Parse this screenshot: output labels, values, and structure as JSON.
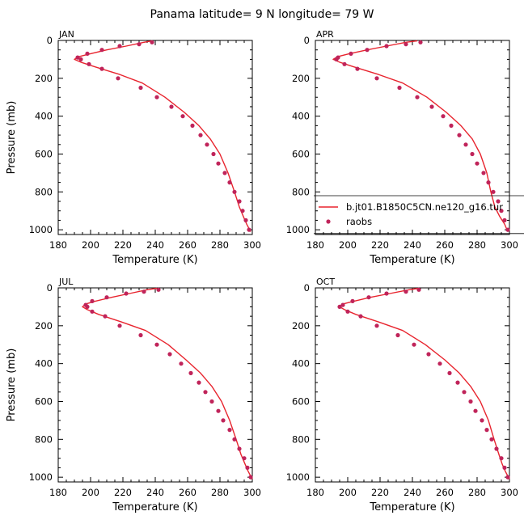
{
  "title": "Panama  latitude= 9 N longitude= 79 W",
  "colors": {
    "model_line": "#e8242e",
    "obs_marker": "#c0245a",
    "axis": "#000000"
  },
  "legend": {
    "panel": "APR",
    "line_label": "b.jt01.B1850C5CN.ne120_g16.tur",
    "marker_label": "raobs"
  },
  "chart_data": [
    {
      "type": "line",
      "panel": "JAN",
      "xlabel": "Temperature (K)",
      "ylabel": "Pressure (mb)",
      "xlim": [
        180,
        300
      ],
      "ylim": [
        1025,
        0
      ],
      "xticks": [
        180,
        200,
        220,
        240,
        260,
        280,
        300
      ],
      "yticks": [
        0,
        200,
        400,
        600,
        800,
        1000
      ],
      "series": [
        {
          "name": "b.jt01.B1850C5CN.ne120_g16.tur",
          "kind": "line",
          "x": [
            238,
            233,
            222,
            210,
            200,
            193,
            190,
            194,
            203,
            218,
            232,
            246,
            258,
            267,
            274,
            280,
            285,
            289,
            292,
            294.5,
            296.5,
            299
          ],
          "y": [
            2,
            10,
            30,
            50,
            70,
            85,
            100,
            115,
            140,
            180,
            225,
            300,
            380,
            450,
            520,
            600,
            700,
            800,
            880,
            930,
            970,
            1010
          ]
        },
        {
          "name": "raobs",
          "kind": "scatter",
          "x": [
            238,
            230,
            218,
            207,
            198,
            192,
            194,
            199,
            207,
            217,
            231,
            241,
            250,
            257,
            263,
            268,
            272,
            276,
            279,
            283,
            286,
            289,
            292,
            294,
            296,
            298
          ],
          "y": [
            10,
            20,
            30,
            50,
            70,
            90,
            100,
            125,
            150,
            200,
            250,
            300,
            350,
            400,
            450,
            500,
            550,
            600,
            650,
            700,
            750,
            800,
            850,
            900,
            950,
            1000
          ]
        }
      ]
    },
    {
      "type": "line",
      "panel": "APR",
      "xlabel": "Temperature (K)",
      "ylabel": "",
      "xlim": [
        180,
        300
      ],
      "ylim": [
        1025,
        0
      ],
      "xticks": [
        180,
        200,
        220,
        240,
        260,
        280,
        300
      ],
      "yticks": [
        0,
        200,
        400,
        600,
        800,
        1000
      ],
      "series": [
        {
          "name": "b.jt01.B1850C5CN.ne120_g16.tur",
          "kind": "line",
          "x": [
            243,
            236,
            224,
            212,
            201,
            194,
            191,
            195,
            204,
            219,
            234,
            249,
            261,
            270,
            277,
            282,
            286,
            288.5,
            291,
            294,
            297,
            299
          ],
          "y": [
            2,
            10,
            30,
            50,
            70,
            85,
            100,
            115,
            140,
            180,
            225,
            300,
            380,
            450,
            520,
            600,
            700,
            800,
            880,
            930,
            970,
            1010
          ]
        },
        {
          "name": "raobs",
          "kind": "scatter",
          "x": [
            245,
            236,
            224,
            212,
            202,
            194,
            193,
            198,
            206,
            218,
            232,
            243,
            252,
            259,
            264,
            269,
            273,
            277,
            280,
            284,
            287,
            290,
            293,
            295,
            297,
            299
          ],
          "y": [
            10,
            20,
            30,
            50,
            70,
            90,
            100,
            125,
            150,
            200,
            250,
            300,
            350,
            400,
            450,
            500,
            550,
            600,
            650,
            700,
            750,
            800,
            850,
            900,
            950,
            1000
          ]
        }
      ]
    },
    {
      "type": "line",
      "panel": "JUL",
      "xlabel": "Temperature (K)",
      "ylabel": "Pressure (mb)",
      "xlim": [
        180,
        300
      ],
      "ylim": [
        1025,
        0
      ],
      "xticks": [
        180,
        200,
        220,
        240,
        260,
        280,
        300
      ],
      "yticks": [
        0,
        200,
        400,
        600,
        800,
        1000
      ],
      "series": [
        {
          "name": "b.jt01.B1850C5CN.ne120_g16.tur",
          "kind": "line",
          "x": [
            241,
            235,
            224,
            213,
            203,
            197,
            195,
            198,
            205,
            219,
            234,
            248,
            259,
            268,
            275,
            281,
            286,
            290,
            293,
            295.5,
            297.5,
            300
          ],
          "y": [
            2,
            10,
            30,
            50,
            70,
            85,
            100,
            115,
            140,
            180,
            225,
            300,
            380,
            450,
            520,
            600,
            700,
            800,
            880,
            930,
            970,
            1010
          ]
        },
        {
          "name": "raobs",
          "kind": "scatter",
          "x": [
            242,
            233,
            222,
            210,
            201,
            197,
            198,
            201,
            209,
            218,
            231,
            241,
            249,
            256,
            262,
            267,
            271,
            275,
            279,
            282,
            286,
            289,
            292,
            295,
            297,
            299
          ],
          "y": [
            10,
            20,
            30,
            50,
            70,
            90,
            100,
            125,
            150,
            200,
            250,
            300,
            350,
            400,
            450,
            500,
            550,
            600,
            650,
            700,
            750,
            800,
            850,
            900,
            950,
            1000
          ]
        }
      ]
    },
    {
      "type": "line",
      "panel": "OCT",
      "xlabel": "Temperature (K)",
      "ylabel": "",
      "xlim": [
        180,
        300
      ],
      "ylim": [
        1025,
        0
      ],
      "xticks": [
        180,
        200,
        220,
        240,
        260,
        280,
        300
      ],
      "yticks": [
        0,
        200,
        400,
        600,
        800,
        1000
      ],
      "series": [
        {
          "name": "b.jt01.B1850C5CN.ne120_g16.tur",
          "kind": "line",
          "x": [
            244,
            238,
            226,
            214,
            204,
            197,
            195,
            198,
            205,
            219,
            234,
            248,
            260,
            269,
            276,
            282,
            287,
            290.5,
            293.5,
            295.5,
            297.5,
            300
          ],
          "y": [
            2,
            10,
            30,
            50,
            70,
            85,
            100,
            115,
            140,
            180,
            225,
            300,
            380,
            450,
            520,
            600,
            700,
            800,
            880,
            930,
            970,
            1010
          ]
        },
        {
          "name": "raobs",
          "kind": "scatter",
          "x": [
            244,
            236,
            224,
            213,
            203,
            197,
            195,
            200,
            208,
            218,
            231,
            241,
            250,
            257,
            263,
            268,
            272,
            276,
            279,
            283,
            286,
            289,
            292,
            295,
            297,
            299
          ],
          "y": [
            10,
            20,
            30,
            50,
            70,
            90,
            100,
            125,
            150,
            200,
            250,
            300,
            350,
            400,
            450,
            500,
            550,
            600,
            650,
            700,
            750,
            800,
            850,
            900,
            950,
            1000
          ]
        }
      ]
    }
  ]
}
